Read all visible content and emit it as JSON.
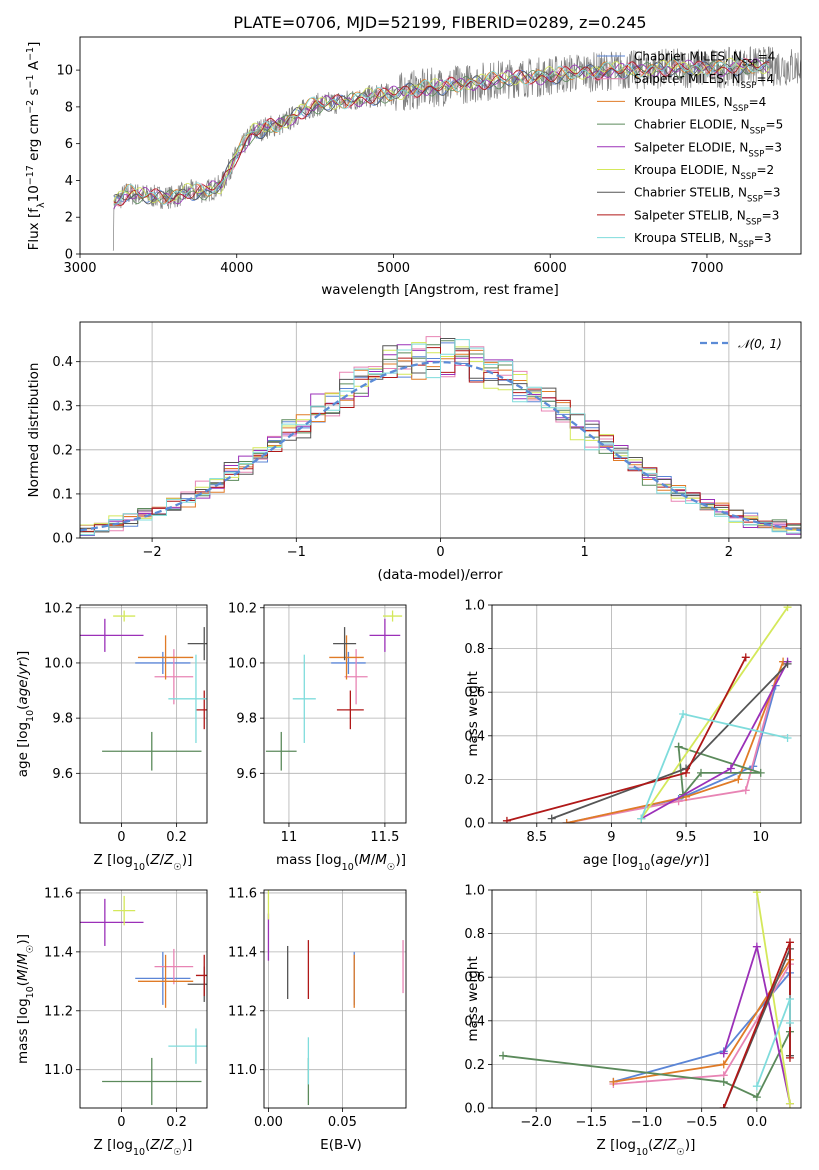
{
  "figure": {
    "title": "PLATE=0706, MJD=52199, FIBERID=0289, z=0.245"
  },
  "colors": {
    "Chabrier MILES": "#5b85d6",
    "Salpeter MILES": "#e884b4",
    "Kroupa MILES": "#e07b27",
    "Chabrier ELODIE": "#5b8a5b",
    "Salpeter ELODIE": "#9b30b8",
    "Kroupa ELODIE": "#d4e85a",
    "Chabrier STELIB": "#555555",
    "Salpeter STELIB": "#b01818",
    "Kroupa STELIB": "#7fdcdc"
  },
  "chart_data": [
    {
      "id": "spectrum",
      "type": "line",
      "xlabel": "wavelength [Angstrom, rest frame]",
      "ylabel": "Flux [f_λ 10^-17 erg cm^-2 s^-1 A^-1]",
      "xlim": [
        3000,
        7600
      ],
      "ylim": [
        0,
        11.8
      ],
      "xticks": [
        3000,
        4000,
        5000,
        6000,
        7000
      ],
      "yticks": [
        0,
        2,
        4,
        6,
        8,
        10
      ],
      "grid": false,
      "legend_position": "right",
      "data_series": {
        "name": "",
        "color": "#808080"
      },
      "continuum_profile": {
        "x": [
          3200,
          3300,
          3400,
          3500,
          3600,
          3700,
          3800,
          3900,
          4000,
          4100,
          4200,
          4300,
          4400,
          4500,
          4600,
          4700,
          4800,
          4900,
          5000,
          5100,
          5200,
          5300,
          5400,
          5500,
          5600,
          5700,
          5800,
          5900,
          6000,
          6100,
          6200,
          6300,
          6400,
          6500,
          6600,
          6700,
          6800,
          6900,
          7000,
          7100,
          7200,
          7300
        ],
        "y": [
          2.7,
          3.3,
          3.2,
          3.1,
          3.1,
          3.4,
          3.4,
          3.7,
          5.4,
          6.6,
          6.9,
          7.1,
          7.7,
          8.1,
          8.2,
          8.3,
          8.5,
          8.6,
          8.7,
          8.9,
          9.0,
          9.1,
          9.2,
          9.3,
          9.4,
          9.5,
          9.6,
          9.6,
          9.7,
          9.8,
          9.9,
          9.9,
          10.0,
          10.0,
          10.0,
          10.1,
          10.1,
          10.1,
          10.1,
          10.1,
          10.2,
          10.2
        ]
      },
      "legend_entries": [
        {
          "name": "Chabrier MILES",
          "n_ssp": 4
        },
        {
          "name": "Salpeter MILES",
          "n_ssp": 4
        },
        {
          "name": "Kroupa MILES",
          "n_ssp": 4
        },
        {
          "name": "Chabrier ELODIE",
          "n_ssp": 5
        },
        {
          "name": "Salpeter ELODIE",
          "n_ssp": 3
        },
        {
          "name": "Kroupa ELODIE",
          "n_ssp": 2
        },
        {
          "name": "Chabrier STELIB",
          "n_ssp": 3
        },
        {
          "name": "Salpeter STELIB",
          "n_ssp": 3
        },
        {
          "name": "Kroupa STELIB",
          "n_ssp": 3
        }
      ],
      "legend_ssp_label": "N",
      "legend_ssp_sub": "SSP"
    },
    {
      "id": "residuals",
      "type": "line",
      "xlabel": "(data-model)/error",
      "ylabel": "Normed distribution",
      "xlim": [
        -2.5,
        2.5
      ],
      "ylim": [
        0,
        0.49
      ],
      "xticks": [
        -2,
        -1,
        0,
        1,
        2
      ],
      "xtick_labels": [
        "−2",
        "−1",
        "0",
        "1",
        "2"
      ],
      "yticks": [
        0.0,
        0.1,
        0.2,
        0.3,
        0.4
      ],
      "grid": true,
      "legend_position": "upper right",
      "legend": "𝒩(0, 1)",
      "bin_width": 0.1,
      "bin_start": -2.5
    },
    {
      "id": "age_vs_Z",
      "type": "scatter",
      "xlabel": "Z [log10(Z/Z☉)]",
      "ylabel": "age  [log10(age/yr)]",
      "xlim": [
        -0.15,
        0.31
      ],
      "ylim": [
        9.42,
        10.21
      ],
      "xticks": [
        0.0,
        0.2
      ],
      "yticks": [
        9.6,
        9.8,
        10.0,
        10.2
      ],
      "grid": true,
      "points": [
        {
          "name": "Chabrier MILES",
          "x": 0.15,
          "y": 10.0,
          "xerr": 0.1,
          "yerr": 0.04
        },
        {
          "name": "Salpeter MILES",
          "x": 0.19,
          "y": 9.95,
          "xerr": 0.07,
          "yerr": 0.1
        },
        {
          "name": "Kroupa MILES",
          "x": 0.16,
          "y": 10.02,
          "xerr": 0.1,
          "yerr": 0.08
        },
        {
          "name": "Chabrier ELODIE",
          "x": 0.11,
          "y": 9.68,
          "xerr": 0.18,
          "yerr": 0.07
        },
        {
          "name": "Salpeter ELODIE",
          "x": -0.06,
          "y": 10.1,
          "xerr": 0.14,
          "yerr": 0.06
        },
        {
          "name": "Kroupa ELODIE",
          "x": 0.01,
          "y": 10.17,
          "xerr": 0.04,
          "yerr": 0.02
        },
        {
          "name": "Chabrier STELIB",
          "x": 0.3,
          "y": 10.07,
          "xerr": 0.06,
          "yerr": 0.06
        },
        {
          "name": "Salpeter STELIB",
          "x": 0.3,
          "y": 9.83,
          "xerr": 0.03,
          "yerr": 0.07
        },
        {
          "name": "Kroupa STELIB",
          "x": 0.27,
          "y": 9.87,
          "xerr": 0.1,
          "yerr": 0.16
        }
      ]
    },
    {
      "id": "age_vs_mass",
      "type": "scatter",
      "xlabel": "mass [log10(M/M☉)]",
      "ylabel": "",
      "xlim": [
        10.87,
        11.61
      ],
      "ylim": [
        9.42,
        10.21
      ],
      "xticks": [
        11.0,
        11.5
      ],
      "yticks": [
        9.6,
        9.8,
        10.0,
        10.2
      ],
      "grid": true,
      "points": [
        {
          "name": "Chabrier MILES",
          "x": 11.31,
          "y": 10.0,
          "xerr": 0.09,
          "yerr": 0.04
        },
        {
          "name": "Salpeter MILES",
          "x": 11.35,
          "y": 9.95,
          "xerr": 0.06,
          "yerr": 0.1
        },
        {
          "name": "Kroupa MILES",
          "x": 11.3,
          "y": 10.02,
          "xerr": 0.09,
          "yerr": 0.08
        },
        {
          "name": "Chabrier ELODIE",
          "x": 10.96,
          "y": 9.68,
          "xerr": 0.08,
          "yerr": 0.07
        },
        {
          "name": "Salpeter ELODIE",
          "x": 11.5,
          "y": 10.1,
          "xerr": 0.08,
          "yerr": 0.06
        },
        {
          "name": "Kroupa ELODIE",
          "x": 11.54,
          "y": 10.17,
          "xerr": 0.05,
          "yerr": 0.02
        },
        {
          "name": "Chabrier STELIB",
          "x": 11.29,
          "y": 10.07,
          "xerr": 0.06,
          "yerr": 0.06
        },
        {
          "name": "Salpeter STELIB",
          "x": 11.32,
          "y": 9.83,
          "xerr": 0.07,
          "yerr": 0.07
        },
        {
          "name": "Kroupa STELIB",
          "x": 11.08,
          "y": 9.87,
          "xerr": 0.06,
          "yerr": 0.16
        }
      ]
    },
    {
      "id": "weight_vs_age",
      "type": "line",
      "xlabel": "age  [log10(age/yr)]",
      "ylabel": "mass weight",
      "xlim": [
        8.2,
        10.27
      ],
      "ylim": [
        0,
        1.0
      ],
      "xticks": [
        8.5,
        9.0,
        9.5,
        10.0
      ],
      "yticks": [
        0.0,
        0.2,
        0.4,
        0.6,
        0.8,
        1.0
      ],
      "grid": true,
      "series": [
        {
          "name": "Chabrier MILES",
          "x": [
            8.7,
            9.45,
            9.95,
            10.1
          ],
          "y": [
            0.0,
            0.11,
            0.26,
            0.63
          ]
        },
        {
          "name": "Salpeter MILES",
          "x": [
            8.7,
            9.45,
            9.9,
            10.1
          ],
          "y": [
            0.0,
            0.1,
            0.15,
            0.66
          ]
        },
        {
          "name": "Kroupa MILES",
          "x": [
            8.7,
            9.5,
            9.85,
            10.15
          ],
          "y": [
            0.0,
            0.12,
            0.2,
            0.74
          ]
        },
        {
          "name": "Chabrier ELODIE",
          "x": [
            9.45,
            9.48,
            9.6,
            10.0,
            9.45
          ],
          "y": [
            0.35,
            0.13,
            0.23,
            0.23,
            0.35
          ]
        },
        {
          "name": "Salpeter ELODIE",
          "x": [
            9.2,
            9.8,
            10.18
          ],
          "y": [
            0.02,
            0.25,
            0.74
          ]
        },
        {
          "name": "Kroupa ELODIE",
          "x": [
            9.2,
            10.18
          ],
          "y": [
            0.02,
            0.99
          ]
        },
        {
          "name": "Chabrier STELIB",
          "x": [
            8.6,
            9.5,
            10.18
          ],
          "y": [
            0.02,
            0.25,
            0.73
          ]
        },
        {
          "name": "Salpeter STELIB",
          "x": [
            8.3,
            9.5,
            9.9
          ],
          "y": [
            0.01,
            0.23,
            0.76
          ]
        },
        {
          "name": "Kroupa STELIB",
          "x": [
            9.2,
            9.48,
            10.18
          ],
          "y": [
            0.02,
            0.5,
            0.39
          ]
        }
      ]
    },
    {
      "id": "mass_vs_Z",
      "type": "scatter",
      "xlabel": "Z [log10(Z/Z☉)]",
      "ylabel": "mass [log10(M/M☉)]",
      "xlim": [
        -0.15,
        0.31
      ],
      "ylim": [
        10.87,
        11.61
      ],
      "xticks": [
        0.0,
        0.2
      ],
      "yticks": [
        11.0,
        11.2,
        11.4,
        11.6
      ],
      "grid": true,
      "points": [
        {
          "name": "Chabrier MILES",
          "x": 0.15,
          "y": 11.31,
          "xerr": 0.1,
          "yerr": 0.09
        },
        {
          "name": "Salpeter MILES",
          "x": 0.19,
          "y": 11.35,
          "xerr": 0.07,
          "yerr": 0.06
        },
        {
          "name": "Kroupa MILES",
          "x": 0.16,
          "y": 11.3,
          "xerr": 0.1,
          "yerr": 0.09
        },
        {
          "name": "Chabrier ELODIE",
          "x": 0.11,
          "y": 10.96,
          "xerr": 0.18,
          "yerr": 0.08
        },
        {
          "name": "Salpeter ELODIE",
          "x": -0.06,
          "y": 11.5,
          "xerr": 0.14,
          "yerr": 0.08
        },
        {
          "name": "Kroupa ELODIE",
          "x": 0.01,
          "y": 11.54,
          "xerr": 0.04,
          "yerr": 0.05
        },
        {
          "name": "Chabrier STELIB",
          "x": 0.3,
          "y": 11.29,
          "xerr": 0.06,
          "yerr": 0.06
        },
        {
          "name": "Salpeter STELIB",
          "x": 0.3,
          "y": 11.32,
          "xerr": 0.03,
          "yerr": 0.07
        },
        {
          "name": "Kroupa STELIB",
          "x": 0.27,
          "y": 11.08,
          "xerr": 0.1,
          "yerr": 0.06
        }
      ]
    },
    {
      "id": "mass_vs_ebv",
      "type": "scatter",
      "xlabel": "E(B-V)",
      "ylabel": "",
      "xlim": [
        -0.003,
        0.093
      ],
      "ylim": [
        10.87,
        11.61
      ],
      "xticks": [
        0.0,
        0.05
      ],
      "xtick_labels": [
        "0.00",
        "0.05"
      ],
      "yticks": [
        11.0,
        11.2,
        11.4,
        11.6
      ],
      "grid": true,
      "points": [
        {
          "name": "Chabrier MILES",
          "x": 0.058,
          "y": 11.31,
          "xerr": 0,
          "yerr": 0.09
        },
        {
          "name": "Salpeter MILES",
          "x": 0.091,
          "y": 11.35,
          "xerr": 0,
          "yerr": 0.09
        },
        {
          "name": "Kroupa MILES",
          "x": 0.058,
          "y": 11.3,
          "xerr": 0,
          "yerr": 0.09
        },
        {
          "name": "Chabrier ELODIE",
          "x": 0.027,
          "y": 10.96,
          "xerr": 0,
          "yerr": 0.08
        },
        {
          "name": "Salpeter ELODIE",
          "x": 0.0,
          "y": 11.45,
          "xerr": 0,
          "yerr": 0.08
        },
        {
          "name": "Kroupa ELODIE",
          "x": 0.0,
          "y": 11.56,
          "xerr": 0,
          "yerr": 0.05
        },
        {
          "name": "Chabrier STELIB",
          "x": 0.013,
          "y": 11.33,
          "xerr": 0,
          "yerr": 0.09
        },
        {
          "name": "Salpeter STELIB",
          "x": 0.027,
          "y": 11.34,
          "xerr": 0,
          "yerr": 0.1
        },
        {
          "name": "Kroupa STELIB",
          "x": 0.027,
          "y": 11.03,
          "xerr": 0,
          "yerr": 0.08
        }
      ]
    },
    {
      "id": "weight_vs_Z",
      "type": "line",
      "xlabel": "Z [log10(Z/Z☉)]",
      "ylabel": "mass weight",
      "xlim": [
        -2.4,
        0.4
      ],
      "ylim": [
        0,
        1.0
      ],
      "xticks": [
        -2.0,
        -1.5,
        -1.0,
        -0.5,
        0.0
      ],
      "xtick_labels": [
        "−2.0",
        "−1.5",
        "−1.0",
        "−0.5",
        "0.0"
      ],
      "yticks": [
        0.0,
        0.2,
        0.4,
        0.6,
        0.8,
        1.0
      ],
      "grid": true,
      "series": [
        {
          "name": "Chabrier MILES",
          "x": [
            -1.3,
            -0.3,
            0.3
          ],
          "y": [
            0.12,
            0.26,
            0.62
          ]
        },
        {
          "name": "Salpeter MILES",
          "x": [
            -1.3,
            -0.3,
            0.3
          ],
          "y": [
            0.11,
            0.15,
            0.66
          ]
        },
        {
          "name": "Kroupa MILES",
          "x": [
            -1.3,
            -0.3,
            0.3
          ],
          "y": [
            0.12,
            0.2,
            0.68
          ]
        },
        {
          "name": "Chabrier ELODIE",
          "x": [
            -2.3,
            -0.3,
            0.0,
            0.3
          ],
          "y": [
            0.24,
            0.12,
            0.05,
            0.35
          ]
        },
        {
          "name": "Salpeter ELODIE",
          "x": [
            -0.3,
            0.0,
            0.3
          ],
          "y": [
            0.25,
            0.74,
            0.02
          ]
        },
        {
          "name": "Kroupa ELODIE",
          "x": [
            0.0,
            0.3
          ],
          "y": [
            0.99,
            0.02
          ]
        },
        {
          "name": "Chabrier STELIB",
          "x": [
            -0.3,
            0.3,
            0.3
          ],
          "y": [
            0.0,
            0.73,
            0.24
          ]
        },
        {
          "name": "Salpeter STELIB",
          "x": [
            -0.3,
            0.3,
            0.3
          ],
          "y": [
            0.0,
            0.76,
            0.23
          ]
        },
        {
          "name": "Kroupa STELIB",
          "x": [
            0.0,
            0.3,
            0.3
          ],
          "y": [
            0.1,
            0.5,
            0.39
          ]
        }
      ]
    }
  ]
}
